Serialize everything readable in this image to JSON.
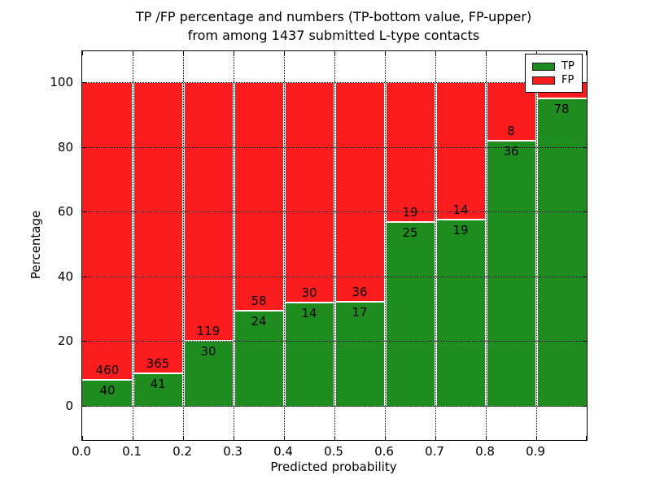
{
  "figure": {
    "title_line1": "TP /FP percentage and numbers (TP-bottom value, FP-upper)",
    "title_line2": "from among 1437 submitted L-type contacts"
  },
  "axes": {
    "ylabel": "Percentage",
    "xlabel": "Predicted probability",
    "ytick_values": [
      0,
      20,
      40,
      60,
      80,
      100
    ],
    "ytick_labels": [
      "0",
      "20",
      "40",
      "60",
      "80",
      "100"
    ],
    "xtick_labels": [
      "0.0",
      "0.1",
      "0.2",
      "0.3",
      "0.4",
      "0.5",
      "0.6",
      "0.7",
      "0.8",
      "0.9"
    ]
  },
  "legend": {
    "items": [
      {
        "label": "TP",
        "color": "#1e8c1e"
      },
      {
        "label": "FP",
        "color": "#fb1d1d"
      }
    ]
  },
  "colors": {
    "tp": "#1e8c1e",
    "fp": "#fb1d1d",
    "grid": "#000000"
  },
  "chart_data": {
    "type": "bar",
    "stacked": true,
    "title": "TP /FP percentage and numbers (TP-bottom value, FP-upper) from among 1437 submitted L-type contacts",
    "xlabel": "Predicted probability",
    "ylabel": "Percentage",
    "xlim": [
      0.0,
      1.0
    ],
    "ylim": [
      -10,
      110
    ],
    "grid": true,
    "legend_position": "upper right",
    "bin_edges": [
      0.0,
      0.1,
      0.2,
      0.3,
      0.4,
      0.5,
      0.6,
      0.7,
      0.8,
      0.9,
      1.0
    ],
    "bins": [
      "0.0-0.1",
      "0.1-0.2",
      "0.2-0.3",
      "0.3-0.4",
      "0.4-0.5",
      "0.5-0.6",
      "0.6-0.7",
      "0.7-0.8",
      "0.8-0.9",
      "0.9-1.0"
    ],
    "series": [
      {
        "name": "TP",
        "position": "bottom",
        "color": "#1e8c1e",
        "counts": [
          40,
          41,
          30,
          24,
          14,
          17,
          25,
          19,
          36,
          78
        ]
      },
      {
        "name": "FP",
        "position": "top",
        "color": "#fb1d1d",
        "counts": [
          460,
          365,
          119,
          58,
          30,
          36,
          19,
          14,
          8,
          null
        ]
      }
    ],
    "tp_percent": [
      8.0,
      10.1,
      20.1,
      29.3,
      31.8,
      32.1,
      56.8,
      57.6,
      81.8,
      95.1
    ]
  }
}
